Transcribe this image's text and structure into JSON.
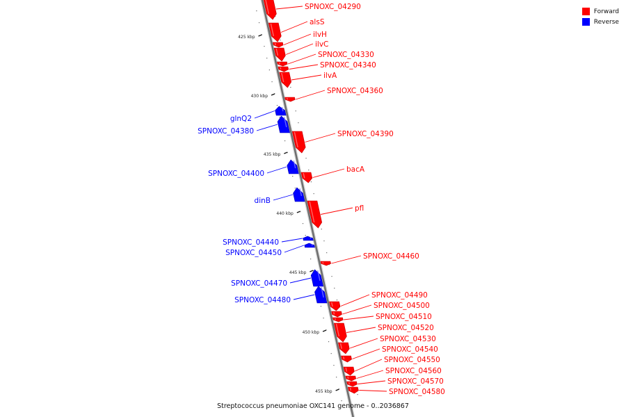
{
  "legend": {
    "forward_label": "Forward",
    "reverse_label": "Reverse",
    "forward_color": "#ff0000",
    "reverse_color": "#0000ff"
  },
  "caption": "Streptococcus pneumoniae OXC141 genome  - 0..2036867",
  "ticks": [
    {
      "label": "425 kbp",
      "kbp": 425
    },
    {
      "label": "430 kbp",
      "kbp": 430
    },
    {
      "label": "435 kbp",
      "kbp": 435
    },
    {
      "label": "440 kbp",
      "kbp": 440
    },
    {
      "label": "445 kbp",
      "kbp": 445
    },
    {
      "label": "450 kbp",
      "kbp": 450
    },
    {
      "label": "455 kbp",
      "kbp": 455
    }
  ],
  "genes": [
    {
      "name": "SPNOXC_04290",
      "strand": "forward"
    },
    {
      "name": "alsS",
      "strand": "forward"
    },
    {
      "name": "ilvH",
      "strand": "forward"
    },
    {
      "name": "ilvC",
      "strand": "forward"
    },
    {
      "name": "SPNOXC_04330",
      "strand": "forward"
    },
    {
      "name": "SPNOXC_04340",
      "strand": "forward"
    },
    {
      "name": "ilvA",
      "strand": "forward"
    },
    {
      "name": "SPNOXC_04360",
      "strand": "forward"
    },
    {
      "name": "glnQ2",
      "strand": "reverse"
    },
    {
      "name": "SPNOXC_04380",
      "strand": "reverse"
    },
    {
      "name": "SPNOXC_04390",
      "strand": "forward"
    },
    {
      "name": "SPNOXC_04400",
      "strand": "reverse"
    },
    {
      "name": "bacA",
      "strand": "forward"
    },
    {
      "name": "dinB",
      "strand": "reverse"
    },
    {
      "name": "pfl",
      "strand": "forward"
    },
    {
      "name": "SPNOXC_04440",
      "strand": "reverse"
    },
    {
      "name": "SPNOXC_04450",
      "strand": "reverse"
    },
    {
      "name": "SPNOXC_04460",
      "strand": "forward"
    },
    {
      "name": "SPNOXC_04470",
      "strand": "reverse"
    },
    {
      "name": "SPNOXC_04480",
      "strand": "reverse"
    },
    {
      "name": "SPNOXC_04490",
      "strand": "forward"
    },
    {
      "name": "SPNOXC_04500",
      "strand": "forward"
    },
    {
      "name": "SPNOXC_04510",
      "strand": "forward"
    },
    {
      "name": "SPNOXC_04520",
      "strand": "forward"
    },
    {
      "name": "SPNOXC_04530",
      "strand": "forward"
    },
    {
      "name": "SPNOXC_04540",
      "strand": "forward"
    },
    {
      "name": "SPNOXC_04550",
      "strand": "forward"
    },
    {
      "name": "SPNOXC_04560",
      "strand": "forward"
    },
    {
      "name": "SPNOXC_04570",
      "strand": "forward"
    },
    {
      "name": "SPNOXC_04580",
      "strand": "forward"
    }
  ]
}
